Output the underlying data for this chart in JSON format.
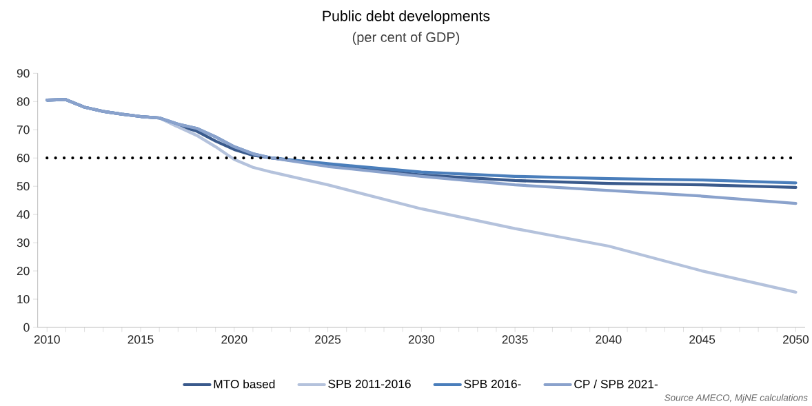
{
  "chart_data": {
    "type": "line",
    "title": "Public debt developments",
    "subtitle": "(per cent of GDP)",
    "x": [
      2010,
      2011,
      2012,
      2013,
      2014,
      2015,
      2016,
      2017,
      2018,
      2019,
      2020,
      2021,
      2022,
      2025,
      2030,
      2035,
      2040,
      2045,
      2050
    ],
    "xlim": [
      2009.5,
      2050.5
    ],
    "xticks": [
      2010,
      2015,
      2020,
      2025,
      2030,
      2035,
      2040,
      2045,
      2050
    ],
    "ylim": [
      0,
      90
    ],
    "yticks": [
      0,
      10,
      20,
      30,
      40,
      50,
      60,
      70,
      80,
      90
    ],
    "series": [
      {
        "name": "MTO based",
        "color": "#3a5a8c",
        "values": [
          80.5,
          80.7,
          78,
          76.5,
          75.5,
          74.7,
          74.2,
          71.5,
          69.5,
          66,
          63,
          61,
          60,
          57.5,
          54,
          52,
          51,
          50.5,
          49.6
        ]
      },
      {
        "name": "SPB 2011-2016",
        "color": "#b4c2dc",
        "values": [
          80.5,
          80.7,
          78,
          76.5,
          75.5,
          74.7,
          74.2,
          71,
          68,
          64,
          59.5,
          56.7,
          55,
          50.5,
          42,
          35,
          28.8,
          20,
          12.5
        ]
      },
      {
        "name": "SPB 2016-",
        "color": "#4a7ebb",
        "values": [
          80.5,
          80.7,
          78,
          76.5,
          75.5,
          74.7,
          74.2,
          72,
          70.5,
          67.5,
          64,
          61.5,
          60,
          58,
          55,
          53.5,
          52.7,
          52.2,
          51.2
        ]
      },
      {
        "name": "CP / SPB 2021-",
        "color": "#8aa2cc",
        "values": [
          80.5,
          80.7,
          78,
          76.5,
          75.5,
          74.7,
          74.2,
          72,
          70.5,
          67.5,
          64,
          61.5,
          60,
          57,
          53.5,
          50.5,
          48.5,
          46.5,
          43.9
        ]
      }
    ],
    "ref_lines": [
      {
        "axis": "y",
        "value": 60,
        "color": "#000000",
        "line_style": "dotted"
      }
    ],
    "legend": "bottom",
    "grid": false,
    "marker": "none",
    "line_style": "solid",
    "annotations": [
      "Source AMECO, MjNE calculations"
    ]
  }
}
